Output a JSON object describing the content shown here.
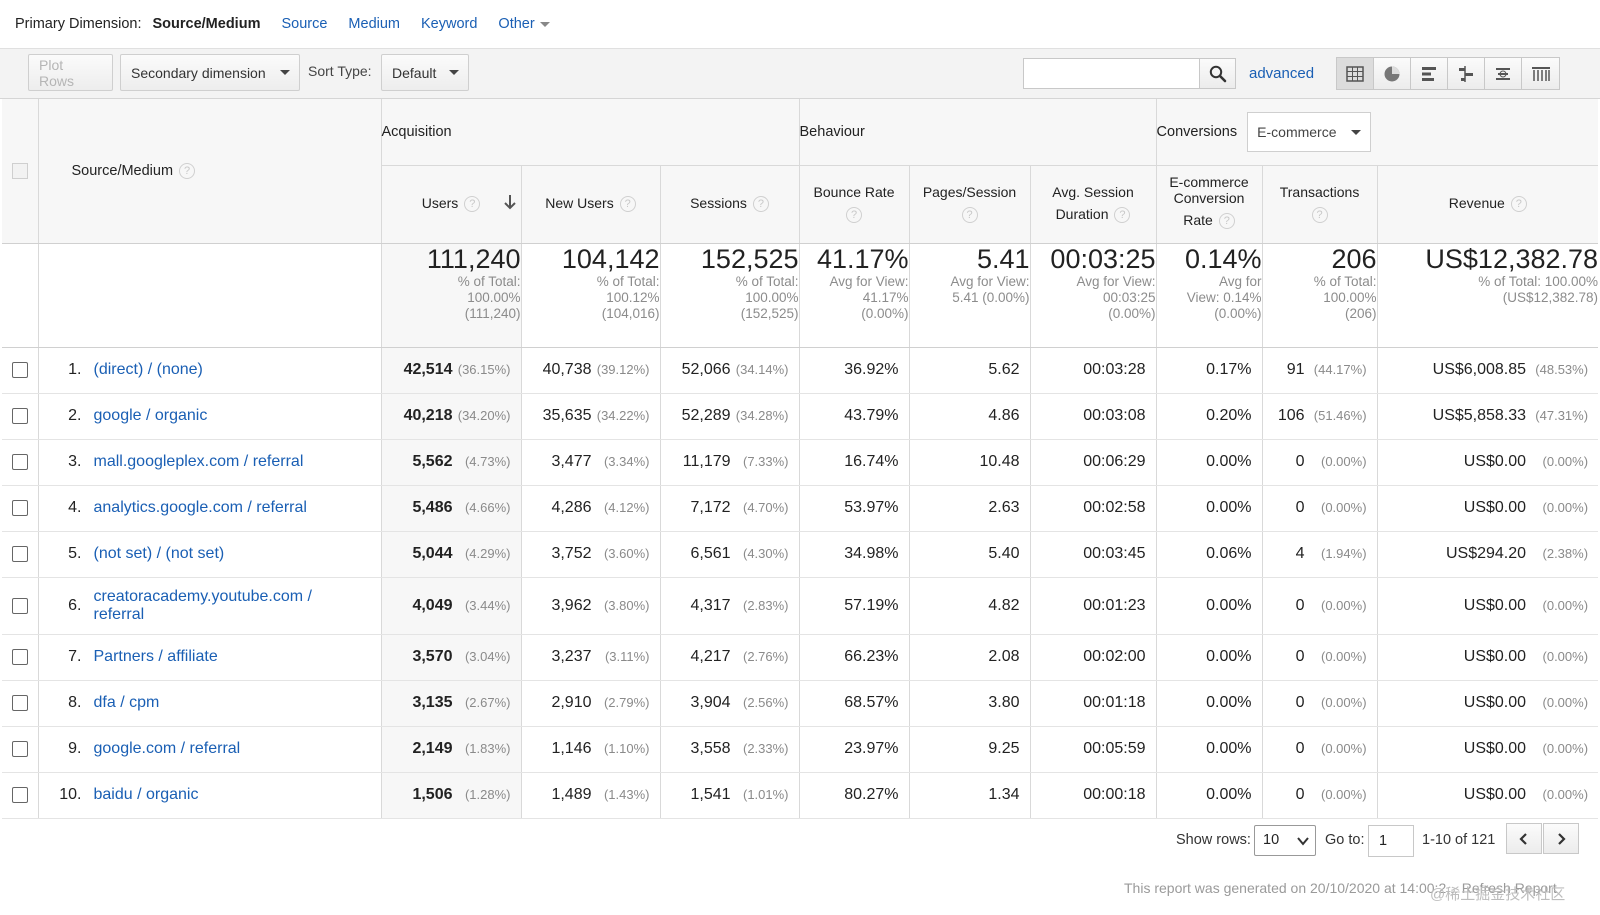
{
  "primary_dimension": {
    "label": "Primary Dimension:",
    "current": "Source/Medium",
    "options": [
      "Source",
      "Medium",
      "Keyword"
    ],
    "other_label": "Other"
  },
  "toolbar": {
    "plot_rows": "Plot Rows",
    "secondary_dimension": "Secondary dimension",
    "sort_type_label": "Sort Type:",
    "sort_type_value": "Default",
    "search_placeholder": "",
    "advanced": "advanced",
    "view_icons": [
      "table-view-icon",
      "pie-view-icon",
      "performance-view-icon",
      "comparison-view-icon",
      "term-cloud-view-icon",
      "pivot-view-icon"
    ]
  },
  "table": {
    "dimension_header": "Source/Medium",
    "groups": {
      "acquisition": "Acquisition",
      "behaviour": "Behaviour",
      "conversions": "Conversions",
      "conversions_select": "E-commerce"
    },
    "columns": {
      "users": "Users",
      "new_users": "New Users",
      "sessions": "Sessions",
      "bounce_rate": "Bounce Rate",
      "pages_session": "Pages/Session",
      "avg_session_1": "Avg. Session",
      "avg_session_2": "Duration",
      "ecr_1": "E-commerce",
      "ecr_2": "Conversion",
      "ecr_3": "Rate",
      "transactions": "Transactions",
      "revenue": "Revenue"
    },
    "totals": {
      "users": {
        "value": "111,240",
        "l1": "% of Total:",
        "l2": "100.00%",
        "l3": "(111,240)"
      },
      "new_users": {
        "value": "104,142",
        "l1": "% of Total:",
        "l2": "100.12%",
        "l3": "(104,016)"
      },
      "sessions": {
        "value": "152,525",
        "l1": "% of Total:",
        "l2": "100.00%",
        "l3": "(152,525)"
      },
      "bounce_rate": {
        "value": "41.17%",
        "l1": "Avg for View:",
        "l2": "41.17%",
        "l3": "(0.00%)"
      },
      "pages_session": {
        "value": "5.41",
        "l1": "Avg for View:",
        "l2": "5.41 (0.00%)",
        "l3": ""
      },
      "avg_duration": {
        "value": "00:03:25",
        "l1": "Avg for View:",
        "l2": "00:03:25",
        "l3": "(0.00%)"
      },
      "ecr": {
        "value": "0.14%",
        "l1": "Avg for",
        "l2": "View: 0.14%",
        "l3": "(0.00%)"
      },
      "transactions": {
        "value": "206",
        "l1": "% of Total:",
        "l2": "100.00%",
        "l3": "(206)"
      },
      "revenue": {
        "value": "US$12,382.78",
        "l1": "% of Total: 100.00%",
        "l2": "(US$12,382.78)",
        "l3": ""
      }
    },
    "rows": [
      {
        "idx": "1.",
        "source_medium": "(direct) / (none)",
        "users": "42,514",
        "users_pct": "(36.15%)",
        "new_users": "40,738",
        "new_users_pct": "(39.12%)",
        "sessions": "52,066",
        "sessions_pct": "(34.14%)",
        "bounce_rate": "36.92%",
        "pages_session": "5.62",
        "avg_duration": "00:03:28",
        "ecr": "0.17%",
        "transactions": "91",
        "transactions_pct": "(44.17%)",
        "revenue": "US$6,008.85",
        "revenue_pct": "(48.53%)"
      },
      {
        "idx": "2.",
        "source_medium": "google / organic",
        "users": "40,218",
        "users_pct": "(34.20%)",
        "new_users": "35,635",
        "new_users_pct": "(34.22%)",
        "sessions": "52,289",
        "sessions_pct": "(34.28%)",
        "bounce_rate": "43.79%",
        "pages_session": "4.86",
        "avg_duration": "00:03:08",
        "ecr": "0.20%",
        "transactions": "106",
        "transactions_pct": "(51.46%)",
        "revenue": "US$5,858.33",
        "revenue_pct": "(47.31%)"
      },
      {
        "idx": "3.",
        "source_medium": "mall.googleplex.com / referral",
        "users": "5,562",
        "users_pct": "(4.73%)",
        "new_users": "3,477",
        "new_users_pct": "(3.34%)",
        "sessions": "11,179",
        "sessions_pct": "(7.33%)",
        "bounce_rate": "16.74%",
        "pages_session": "10.48",
        "avg_duration": "00:06:29",
        "ecr": "0.00%",
        "transactions": "0",
        "transactions_pct": "(0.00%)",
        "revenue": "US$0.00",
        "revenue_pct": "(0.00%)"
      },
      {
        "idx": "4.",
        "source_medium": "analytics.google.com / referral",
        "users": "5,486",
        "users_pct": "(4.66%)",
        "new_users": "4,286",
        "new_users_pct": "(4.12%)",
        "sessions": "7,172",
        "sessions_pct": "(4.70%)",
        "bounce_rate": "53.97%",
        "pages_session": "2.63",
        "avg_duration": "00:02:58",
        "ecr": "0.00%",
        "transactions": "0",
        "transactions_pct": "(0.00%)",
        "revenue": "US$0.00",
        "revenue_pct": "(0.00%)"
      },
      {
        "idx": "5.",
        "source_medium": "(not set) / (not set)",
        "users": "5,044",
        "users_pct": "(4.29%)",
        "new_users": "3,752",
        "new_users_pct": "(3.60%)",
        "sessions": "6,561",
        "sessions_pct": "(4.30%)",
        "bounce_rate": "34.98%",
        "pages_session": "5.40",
        "avg_duration": "00:03:45",
        "ecr": "0.06%",
        "transactions": "4",
        "transactions_pct": "(1.94%)",
        "revenue": "US$294.20",
        "revenue_pct": "(2.38%)"
      },
      {
        "idx": "6.",
        "source_medium": "creatoracademy.youtube.com / referral",
        "users": "4,049",
        "users_pct": "(3.44%)",
        "new_users": "3,962",
        "new_users_pct": "(3.80%)",
        "sessions": "4,317",
        "sessions_pct": "(2.83%)",
        "bounce_rate": "57.19%",
        "pages_session": "4.82",
        "avg_duration": "00:01:23",
        "ecr": "0.00%",
        "transactions": "0",
        "transactions_pct": "(0.00%)",
        "revenue": "US$0.00",
        "revenue_pct": "(0.00%)"
      },
      {
        "idx": "7.",
        "source_medium": "Partners / affiliate",
        "users": "3,570",
        "users_pct": "(3.04%)",
        "new_users": "3,237",
        "new_users_pct": "(3.11%)",
        "sessions": "4,217",
        "sessions_pct": "(2.76%)",
        "bounce_rate": "66.23%",
        "pages_session": "2.08",
        "avg_duration": "00:02:00",
        "ecr": "0.00%",
        "transactions": "0",
        "transactions_pct": "(0.00%)",
        "revenue": "US$0.00",
        "revenue_pct": "(0.00%)"
      },
      {
        "idx": "8.",
        "source_medium": "dfa / cpm",
        "users": "3,135",
        "users_pct": "(2.67%)",
        "new_users": "2,910",
        "new_users_pct": "(2.79%)",
        "sessions": "3,904",
        "sessions_pct": "(2.56%)",
        "bounce_rate": "68.57%",
        "pages_session": "3.80",
        "avg_duration": "00:01:18",
        "ecr": "0.00%",
        "transactions": "0",
        "transactions_pct": "(0.00%)",
        "revenue": "US$0.00",
        "revenue_pct": "(0.00%)"
      },
      {
        "idx": "9.",
        "source_medium": "google.com / referral",
        "users": "2,149",
        "users_pct": "(1.83%)",
        "new_users": "1,146",
        "new_users_pct": "(1.10%)",
        "sessions": "3,558",
        "sessions_pct": "(2.33%)",
        "bounce_rate": "23.97%",
        "pages_session": "9.25",
        "avg_duration": "00:05:59",
        "ecr": "0.00%",
        "transactions": "0",
        "transactions_pct": "(0.00%)",
        "revenue": "US$0.00",
        "revenue_pct": "(0.00%)"
      },
      {
        "idx": "10.",
        "source_medium": "baidu / organic",
        "users": "1,506",
        "users_pct": "(1.28%)",
        "new_users": "1,489",
        "new_users_pct": "(1.43%)",
        "sessions": "1,541",
        "sessions_pct": "(1.01%)",
        "bounce_rate": "80.27%",
        "pages_session": "1.34",
        "avg_duration": "00:00:18",
        "ecr": "0.00%",
        "transactions": "0",
        "transactions_pct": "(0.00%)",
        "revenue": "US$0.00",
        "revenue_pct": "(0.00%)"
      }
    ]
  },
  "pagination": {
    "show_rows_label": "Show rows:",
    "show_rows_value": "10",
    "goto_label": "Go to:",
    "goto_value": "1",
    "range": "1-10 of 121"
  },
  "footer": {
    "note": "This report was generated on 20/10/2020 at 14:00:2... Refresh Report",
    "watermark": "@稀土掘金技术社区"
  },
  "colors": {
    "link": "#1a5fb4",
    "header_bg": "#f7f7f7",
    "toolbar_bg": "#f3f3f3"
  }
}
